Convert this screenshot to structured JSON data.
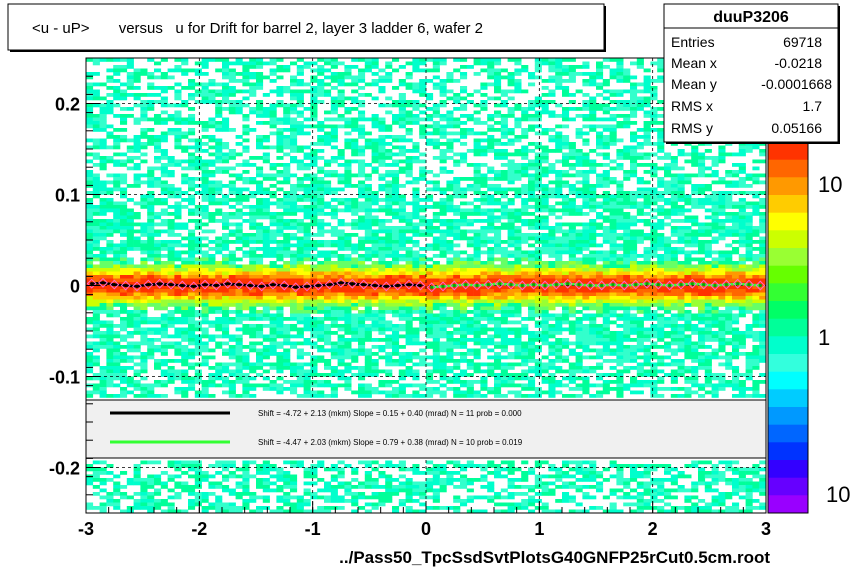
{
  "title": "<u - uP>       versus   u for Drift for barrel 2, layer 3 ladder 6, wafer 2",
  "footer": "../Pass50_TpcSsdSvtPlotsG40GNFP25rCut0.5cm.root",
  "colors": {
    "frame": "#000000",
    "legend_bg": "#f0f0f0",
    "fit_black": "#000000",
    "fit_green": "#33ff33",
    "marker_pink": "#ff66cc"
  },
  "stats": {
    "name": "duuP3206",
    "rows": [
      {
        "label": "Entries",
        "value": "69718"
      },
      {
        "label": "Mean x",
        "value": "-0.0218"
      },
      {
        "label": "Mean y",
        "value": "-0.0001668"
      },
      {
        "label": "RMS x",
        "value": "1.7"
      },
      {
        "label": "RMS y",
        "value": "0.05166"
      }
    ]
  },
  "legend": {
    "entries": [
      {
        "color": "#000000",
        "text": "Shift =    -4.72 + 2.13 (mkm) Slope =    0.15 + 0.40 (mrad)  N = 11 prob = 0.000"
      },
      {
        "color": "#33ff33",
        "text": "Shift =    -4.47 + 2.03 (mkm) Slope =    0.79 + 0.38 (mrad)  N = 10 prob = 0.019"
      }
    ]
  },
  "chart_data": {
    "type": "heatmap",
    "title": "<u - uP>       versus   u for Drift for barrel 2, layer 3 ladder 6, wafer 2",
    "xlabel": "",
    "ylabel": "",
    "xlim": [
      -3,
      3
    ],
    "ylim": [
      -0.25,
      0.25
    ],
    "x_ticks": [
      -3,
      -2,
      -1,
      0,
      1,
      2,
      3
    ],
    "y_ticks": [
      -0.2,
      -0.1,
      0,
      0.1,
      0.2
    ],
    "y_tick_labels": [
      "-0.2",
      "-0.1",
      "0",
      "0.1",
      "0.2"
    ],
    "grid": true,
    "colorbar": {
      "labels": [
        "10",
        "1",
        "10"
      ],
      "scale": "log"
    },
    "series": [
      {
        "x": [
          -2.95,
          -2.85,
          -2.75,
          -2.65,
          -2.55,
          -2.45,
          -2.35,
          -2.25,
          -2.15,
          -2.05,
          -1.95,
          -1.85,
          -1.75,
          -1.65,
          -1.55,
          -1.45,
          -1.35,
          -1.25,
          -1.15,
          -1.05,
          -0.95,
          -0.85,
          -0.75,
          -0.65,
          -0.55,
          -0.45,
          -0.35,
          -0.25,
          -0.15,
          -0.05
        ],
        "y": [
          0.002,
          0.003,
          0.001,
          0.0,
          -0.001,
          0.001,
          0.002,
          0.001,
          0.0,
          -0.001,
          0.001,
          0.0,
          0.002,
          0.001,
          0.0,
          -0.001,
          0.001,
          0.0,
          -0.002,
          -0.001,
          0.0,
          0.001,
          0.003,
          0.002,
          0.001,
          0.0,
          -0.001,
          0.0,
          0.001,
          0.0
        ]
      },
      {
        "x": [
          0.05,
          0.15,
          0.25,
          0.35,
          0.45,
          0.55,
          0.65,
          0.75,
          0.85,
          0.95,
          1.05,
          1.15,
          1.25,
          1.35,
          1.45,
          1.55,
          1.65,
          1.75,
          1.85,
          1.95,
          2.05,
          2.15,
          2.25,
          2.35,
          2.45,
          2.55,
          2.65,
          2.75,
          2.85,
          2.95
        ],
        "y": [
          -0.002,
          -0.001,
          0.0,
          0.001,
          0.0,
          0.001,
          0.002,
          0.001,
          0.0,
          0.001,
          0.0,
          0.001,
          0.002,
          0.001,
          0.0,
          0.0,
          0.001,
          0.0,
          0.001,
          0.002,
          0.001,
          0.0,
          0.001,
          0.002,
          0.001,
          0.0,
          0.001,
          0.002,
          0.001,
          0.0
        ]
      }
    ]
  }
}
